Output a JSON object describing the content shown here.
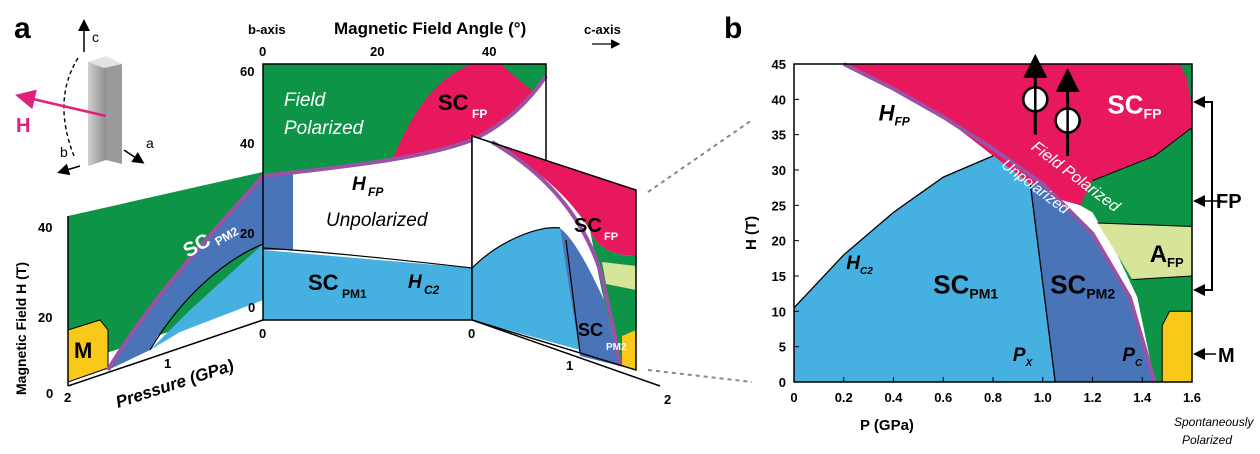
{
  "colors": {
    "sc_fp": "#E8185E",
    "field_polarized": "#0E9447",
    "sc_pm1": "#46B1E1",
    "sc_pm2": "#4A74B8",
    "a_fp": "#D6E59A",
    "m": "#F9C91A",
    "boundary": "#9A52A6",
    "h_arrow": "#E0207A",
    "dotted": "#888888"
  },
  "panel_a": {
    "label": "a",
    "top_axis_title": "Magnetic Field Angle (°)",
    "top_axis_ticks": [
      "0",
      "20",
      "40"
    ],
    "b_axis": "b-axis",
    "c_axis": "c-axis",
    "y_axis_title": "Magnetic Field H (T)",
    "y_ticks": [
      "0",
      "20",
      "40"
    ],
    "x_axis_title": "Pressure (GPa)",
    "x_ticks": [
      "2",
      "1"
    ],
    "mid_ticks_h": [
      "0",
      "20",
      "40",
      "60"
    ],
    "right_bottom_ticks": [
      "0",
      "1",
      "2"
    ],
    "field_polarized_text_1": "Field",
    "field_polarized_text_2": "Polarized",
    "unpolarized_text": "Unpolarized",
    "hfp_main": "H",
    "hfp_sub": "FP",
    "hc2_main": "H",
    "hc2_sub": "C2",
    "sc_main": "SC",
    "sub_fp": "FP",
    "sub_pm1": "PM1",
    "sub_pm2": "PM2",
    "m_label": "M",
    "crystal_axes": {
      "c": "c",
      "a": "a",
      "b": "b",
      "h": "H"
    }
  },
  "panel_b": {
    "label": "b",
    "x_axis_title": "P (GPa)",
    "y_axis_title": "H (T)",
    "footnote_1": "Spontaneously",
    "footnote_2": "Polarized",
    "fp_bracket_label": "FP",
    "m_arrow_label": "M",
    "field_polarized_curve_text": "Field Polarized",
    "unpolarized_curve_text": "Unpolarized",
    "px_main": "P",
    "px_sub": "X",
    "pc_main": "P",
    "pc_sub": "C",
    "a_main": "A",
    "a_sub": "FP"
  },
  "chart_data": [
    {
      "type": "area",
      "panel": "b",
      "xlabel": "P (GPa)",
      "ylabel": "H (T)",
      "xlim": [
        0,
        1.6
      ],
      "ylim": [
        0,
        45
      ],
      "x_ticks": [
        0,
        0.2,
        0.4,
        0.6,
        0.8,
        1.0,
        1.2,
        1.4,
        1.6
      ],
      "y_ticks": [
        0,
        5,
        10,
        15,
        20,
        25,
        30,
        35,
        40,
        45
      ],
      "grid": false,
      "regions": [
        {
          "name": "SC_FP",
          "color": "#E8185E"
        },
        {
          "name": "SC_PM1",
          "color": "#46B1E1"
        },
        {
          "name": "SC_PM2",
          "color": "#4A74B8"
        },
        {
          "name": "A_FP",
          "color": "#D6E59A"
        },
        {
          "name": "M",
          "color": "#F9C91A"
        },
        {
          "name": "FP",
          "color": "#0E9447"
        }
      ],
      "curves": [
        {
          "name": "H_FP",
          "x": [
            0.2,
            0.4,
            0.6,
            0.8,
            1.0,
            1.2,
            1.35,
            1.45
          ],
          "y": [
            45,
            41.5,
            37.5,
            33,
            28,
            21,
            12,
            0
          ]
        },
        {
          "name": "H_C2",
          "x": [
            0.0,
            0.2,
            0.4,
            0.6,
            0.8
          ],
          "y": [
            10.5,
            18,
            24,
            29,
            32
          ]
        },
        {
          "name": "P_X",
          "x": [
            0.95,
            1.05
          ],
          "y": [
            28,
            0
          ]
        }
      ]
    },
    {
      "type": "area",
      "panel": "a",
      "xlabel": "Pressure (GPa)",
      "ylabel": "Magnetic Field H (T)",
      "top_xlabel": "Magnetic Field Angle (°)",
      "x_ticks": [
        2,
        1
      ],
      "y_ticks": [
        0,
        20,
        40
      ],
      "angle_ticks": [
        0,
        20,
        40
      ],
      "h_ticks_mid": [
        0,
        20,
        40,
        60
      ],
      "grid": false
    }
  ]
}
